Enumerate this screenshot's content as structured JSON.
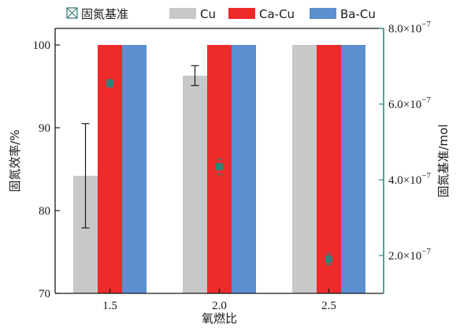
{
  "chart_data": {
    "type": "bar",
    "xlabel": "氧燃比",
    "ylabel_left": "固氮效率/%",
    "ylabel_right": "固氮基准/mol",
    "categories": [
      "1.5",
      "2.0",
      "2.5"
    ],
    "ylim_left": [
      70,
      102
    ],
    "yticks_left": [
      "70",
      "80",
      "90",
      "100"
    ],
    "ylim_right": [
      1e-07,
      8e-07
    ],
    "yticks_right": [
      {
        "value": 2e-07,
        "mantissa": "2.0×10",
        "exp": "−7"
      },
      {
        "value": 4e-07,
        "mantissa": "4.0×10",
        "exp": "−7"
      },
      {
        "value": 6e-07,
        "mantissa": "6.0×10",
        "exp": "−7"
      },
      {
        "value": 8e-07,
        "mantissa": "8.0×10",
        "exp": "−7"
      }
    ],
    "series": [
      {
        "name": "Cu",
        "color": "#c8c8ca",
        "values": [
          84.2,
          96.3,
          100
        ],
        "errors": [
          6.3,
          1.2,
          null
        ]
      },
      {
        "name": "Ca-Cu",
        "color": "#ee2a2a",
        "values": [
          100,
          100,
          100
        ],
        "errors": [
          null,
          null,
          null
        ]
      },
      {
        "name": "Ba-Cu",
        "color": "#5b8fd0",
        "values": [
          100,
          100,
          100
        ],
        "errors": [
          null,
          null,
          null
        ]
      }
    ],
    "baseline_series": {
      "name": "固氮基准",
      "axis": "right",
      "color": "#3a7f79",
      "values": [
        6.55e-07,
        4.35e-07,
        1.9e-07
      ],
      "errors": [
        1e-08,
        2e-08,
        1.5e-08
      ]
    },
    "right_axis_color": "#2a8a80",
    "grid": false,
    "legend_position": "top"
  }
}
